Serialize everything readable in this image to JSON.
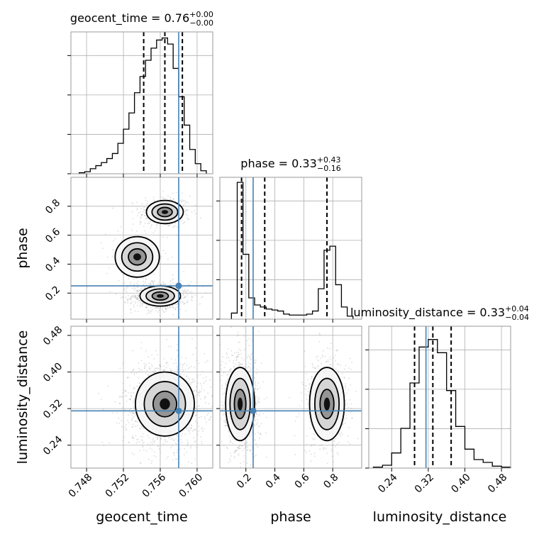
{
  "chart_data": {
    "type": "corner",
    "parameters": [
      {
        "name": "geocent_time",
        "xlabel": "geocent_time",
        "ticks": [
          0.748,
          0.752,
          0.756,
          0.76
        ],
        "tick_labels": [
          "0.748",
          "0.752",
          "0.756",
          "0.760"
        ],
        "range": [
          0.7463,
          0.7617
        ],
        "truth": 0.758,
        "median": 0.7565,
        "q16": 0.7542,
        "q84": 0.7584,
        "title": {
          "text": "geocent_time = 0.76",
          "sup": "+0.00",
          "sub": "−0.00"
        }
      },
      {
        "name": "phase",
        "xlabel": "phase",
        "ylabel": "phase",
        "ticks": [
          0.2,
          0.4,
          0.6,
          0.8
        ],
        "tick_labels": [
          "0.2",
          "0.4",
          "0.6",
          "0.8"
        ],
        "range": [
          0.02,
          1.0
        ],
        "truth": 0.25,
        "median": 0.33,
        "q16": 0.17,
        "q84": 0.76,
        "title": {
          "text": "phase = 0.33",
          "sup": "+0.43",
          "sub": "−0.16"
        }
      },
      {
        "name": "luminosity_distance",
        "xlabel": "luminosity_distance",
        "ylabel": "luminosity_distance",
        "ticks": [
          0.24,
          0.32,
          0.4,
          0.48
        ],
        "tick_labels": [
          "0.24",
          "0.32",
          "0.40",
          "0.48"
        ],
        "range": [
          0.19,
          0.5
        ],
        "truth": 0.315,
        "median": 0.33,
        "q16": 0.29,
        "q84": 0.37,
        "title": {
          "text": "luminosity_distance = 0.33",
          "sup": "+0.04",
          "sub": "−0.04"
        }
      }
    ],
    "histograms": {
      "geocent_time": {
        "bin_edges": [
          0.7472,
          0.7478,
          0.7484,
          0.749,
          0.7496,
          0.7502,
          0.7508,
          0.7514,
          0.752,
          0.7526,
          0.7532,
          0.7538,
          0.7544,
          0.755,
          0.7556,
          0.7562,
          0.7568,
          0.7574,
          0.758,
          0.7586,
          0.7592,
          0.7598,
          0.7604,
          0.761
        ],
        "counts": [
          1,
          2,
          5,
          8,
          11,
          15,
          20,
          30,
          44,
          60,
          80,
          96,
          112,
          124,
          132,
          134,
          128,
          104,
          76,
          48,
          24,
          10,
          3
        ]
      },
      "phase": {
        "bin_edges": [
          0.1,
          0.14,
          0.18,
          0.22,
          0.26,
          0.3,
          0.34,
          0.38,
          0.42,
          0.46,
          0.5,
          0.54,
          0.58,
          0.62,
          0.66,
          0.7,
          0.74,
          0.78,
          0.82,
          0.86,
          0.9,
          0.94
        ],
        "counts": [
          6,
          135,
          64,
          21,
          14,
          12,
          10,
          9,
          8,
          5,
          4,
          4,
          4,
          5,
          8,
          30,
          68,
          72,
          34,
          12,
          3
        ]
      },
      "luminosity_distance": {
        "bin_edges": [
          0.2,
          0.22,
          0.24,
          0.26,
          0.28,
          0.3,
          0.32,
          0.34,
          0.36,
          0.38,
          0.4,
          0.42,
          0.44,
          0.46,
          0.48,
          0.5
        ],
        "counts": [
          1,
          3,
          16,
          42,
          90,
          128,
          136,
          122,
          82,
          44,
          20,
          9,
          6,
          2,
          1
        ]
      }
    },
    "hist_max": {
      "geocent_time": 140,
      "phase": 140,
      "luminosity_distance": 150
    },
    "densities": {
      "geocent_time|phase": [
        {
          "cx": 0.7565,
          "cy": 0.76,
          "sx": 0.001,
          "sy": 0.04,
          "w": 0.45
        },
        {
          "cx": 0.756,
          "cy": 0.18,
          "sx": 0.0011,
          "sy": 0.035,
          "w": 1.0
        },
        {
          "cx": 0.7535,
          "cy": 0.45,
          "sx": 0.0012,
          "sy": 0.07,
          "w": 0.18
        }
      ],
      "geocent_time|luminosity_distance": [
        {
          "cx": 0.7565,
          "cy": 0.33,
          "sx": 0.0016,
          "sy": 0.035,
          "w": 1.0
        }
      ],
      "phase|luminosity_distance": [
        {
          "cx": 0.16,
          "cy": 0.33,
          "sx": 0.05,
          "sy": 0.04,
          "w": 1.0
        },
        {
          "cx": 0.76,
          "cy": 0.33,
          "sx": 0.06,
          "sy": 0.04,
          "w": 0.6
        }
      ]
    },
    "grid": true
  }
}
